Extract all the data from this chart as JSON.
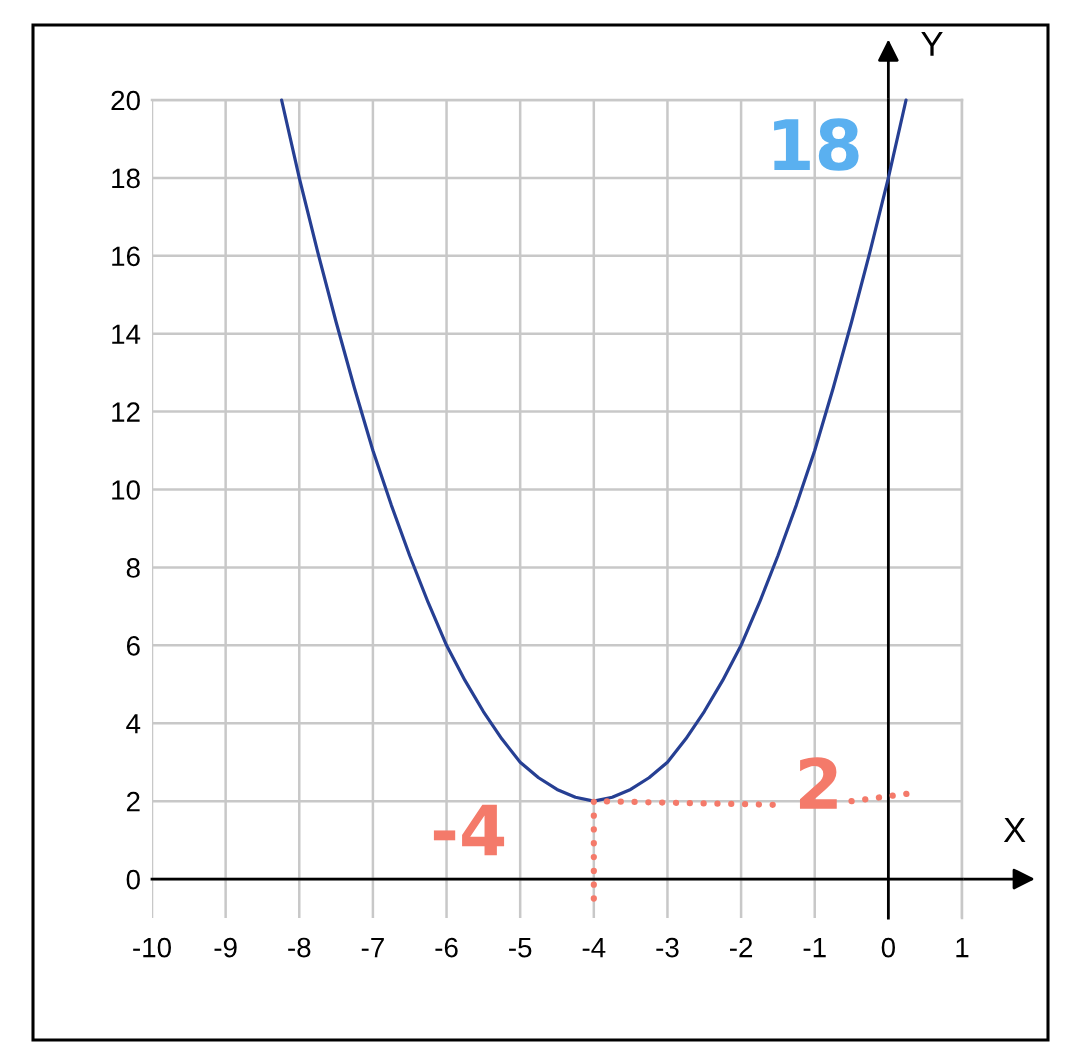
{
  "chart_data": {
    "type": "line",
    "xlabel": "X",
    "ylabel": "Y",
    "annotations": [
      "18",
      "-4",
      "2"
    ],
    "series": [
      {
        "color": "#263f93",
        "x": [
          -8.24,
          -8,
          -7.75,
          -7.5,
          -7.25,
          -7,
          -6.75,
          -6.5,
          -6.25,
          -6,
          -5.75,
          -5.5,
          -5.25,
          -5,
          -4.75,
          -4.5,
          -4.25,
          -4,
          -3.75,
          -3.5,
          -3.25,
          -3,
          -2.75,
          -2.5,
          -2.25,
          -2,
          -1.75,
          -1.5,
          -1.25,
          -1,
          -0.75,
          -0.5,
          -0.25,
          0,
          0.24
        ],
        "values": [
          20,
          18,
          16.1,
          14.3,
          12.6,
          11,
          9.6,
          8.3,
          7.1,
          6,
          5.1,
          4.3,
          3.6,
          3,
          2.6,
          2.3,
          2.1,
          2,
          2.1,
          2.3,
          2.6,
          3,
          3.6,
          4.3,
          5.1,
          6,
          7.1,
          8.3,
          9.6,
          11,
          12.6,
          14.3,
          16.1,
          18,
          20
        ]
      },
      {
        "color": "#f47a6a",
        "line_style": "dotted",
        "x": [
          -4,
          -4,
          -1.4,
          -1.0,
          -0.5,
          0.3
        ],
        "values": [
          -0.5,
          2,
          1.9,
          null,
          2.0,
          2.2
        ]
      }
    ],
    "xlim": [
      -10,
      1
    ],
    "ylim": [
      -1,
      20
    ],
    "xticks": [
      -10,
      -9,
      -8,
      -7,
      -6,
      -5,
      -4,
      -3,
      -2,
      -1,
      0,
      1
    ],
    "yticks": [
      0,
      2,
      4,
      6,
      8,
      10,
      12,
      14,
      16,
      18,
      20
    ],
    "grid": true
  }
}
